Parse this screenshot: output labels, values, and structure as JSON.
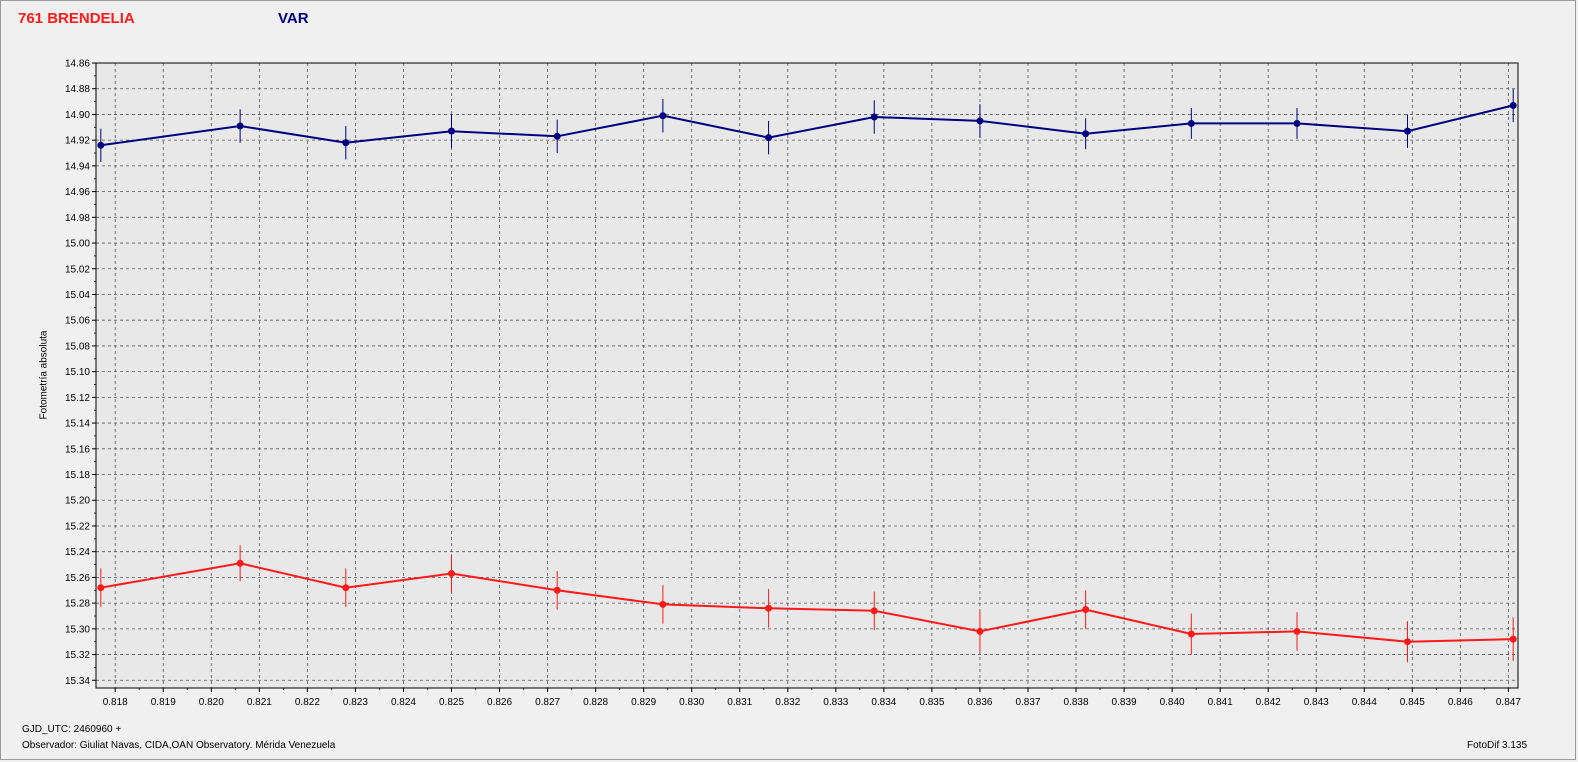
{
  "header": {
    "object_name": "761 BRENDELIA",
    "series_label": "VAR"
  },
  "footer": {
    "gjd": "GJD_UTC: 2460960 +",
    "observer": "Observador: Giuliat Navas, CIDA,OAN Observatory. Mérida Venezuela",
    "software": "FotoDif 3.135"
  },
  "colors": {
    "var_series": "#000080",
    "ref_series": "#ff1a1a",
    "background": "#f0f0f0",
    "plot_background": "#e8e8e8"
  },
  "chart_data": {
    "type": "line",
    "ylabel": "Fotometría absoluta",
    "xlabel": "",
    "y_inverted": true,
    "grid": true,
    "xlim": [
      0.8176,
      0.8472
    ],
    "ylim": [
      14.86,
      15.346
    ],
    "x_ticks": [
      "0.818",
      "0.819",
      "0.820",
      "0.821",
      "0.822",
      "0.823",
      "0.824",
      "0.825",
      "0.826",
      "0.827",
      "0.828",
      "0.829",
      "0.830",
      "0.831",
      "0.832",
      "0.833",
      "0.834",
      "0.835",
      "0.836",
      "0.837",
      "0.838",
      "0.839",
      "0.840",
      "0.841",
      "0.842",
      "0.843",
      "0.844",
      "0.845",
      "0.846",
      "0.847"
    ],
    "y_ticks": [
      "14.86",
      "14.88",
      "14.90",
      "14.92",
      "14.94",
      "14.96",
      "14.98",
      "15.00",
      "15.02",
      "15.04",
      "15.06",
      "15.08",
      "15.10",
      "15.12",
      "15.14",
      "15.16",
      "15.18",
      "15.20",
      "15.22",
      "15.24",
      "15.26",
      "15.28",
      "15.30",
      "15.32",
      "15.34"
    ],
    "series": [
      {
        "name": "VAR",
        "color": "#000080",
        "x": [
          0.8177,
          0.8206,
          0.8228,
          0.825,
          0.8272,
          0.8294,
          0.8316,
          0.8338,
          0.836,
          0.8382,
          0.8404,
          0.8426,
          0.8449,
          0.8471
        ],
        "y": [
          14.924,
          14.909,
          14.922,
          14.913,
          14.917,
          14.901,
          14.918,
          14.902,
          14.905,
          14.915,
          14.907,
          14.907,
          14.913,
          14.893
        ],
        "err": [
          0.013,
          0.013,
          0.013,
          0.013,
          0.013,
          0.013,
          0.013,
          0.013,
          0.013,
          0.012,
          0.012,
          0.012,
          0.013,
          0.013
        ]
      },
      {
        "name": "",
        "color": "#ff1a1a",
        "x": [
          0.8177,
          0.8206,
          0.8228,
          0.825,
          0.8272,
          0.8294,
          0.8316,
          0.8338,
          0.836,
          0.8382,
          0.8404,
          0.8426,
          0.8449,
          0.8471
        ],
        "y": [
          15.268,
          15.249,
          15.268,
          15.257,
          15.27,
          15.281,
          15.284,
          15.286,
          15.302,
          15.285,
          15.304,
          15.302,
          15.31,
          15.308
        ],
        "err": [
          0.015,
          0.014,
          0.015,
          0.015,
          0.015,
          0.015,
          0.015,
          0.015,
          0.016,
          0.015,
          0.016,
          0.015,
          0.016,
          0.017
        ]
      }
    ]
  }
}
